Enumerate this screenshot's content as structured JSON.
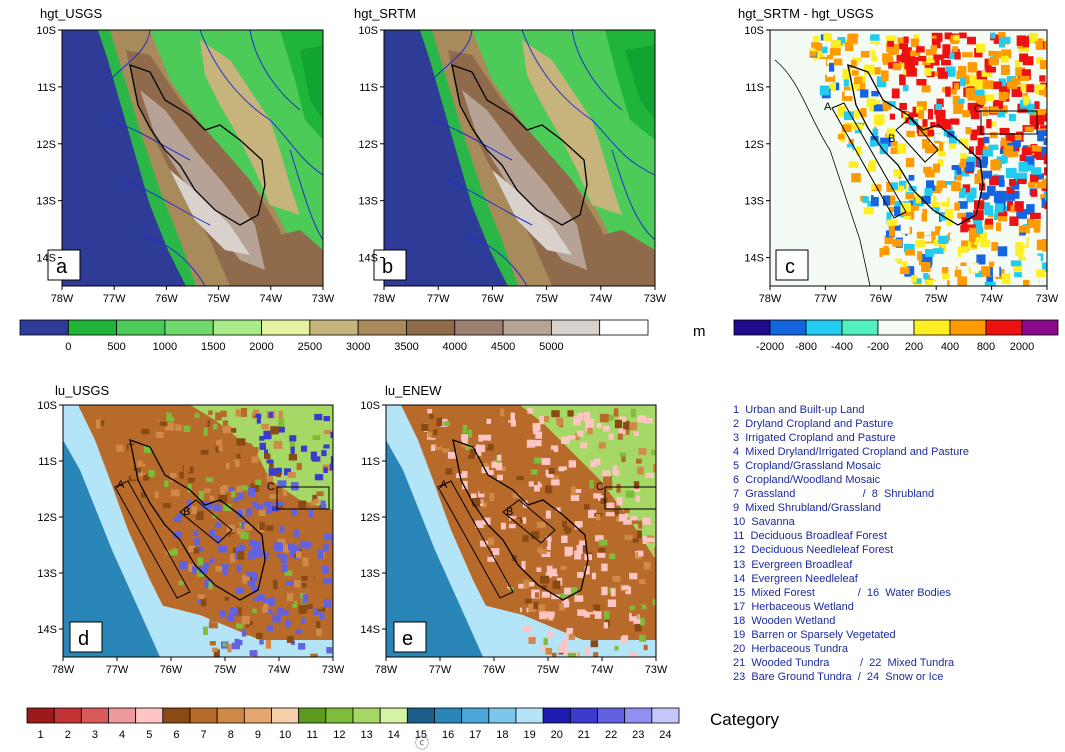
{
  "chart_data": [
    {
      "type": "heatmap",
      "panel_label": "a",
      "title": "hgt_USGS",
      "x_ticks": [
        "78W",
        "77W",
        "76W",
        "75W",
        "74W",
        "73W"
      ],
      "y_ticks": [
        "10S",
        "11S",
        "12S",
        "13S",
        "14S"
      ],
      "xlim": [
        -78,
        -73
      ],
      "ylim": [
        -14.5,
        -10
      ],
      "variable": "terrain height",
      "unit": "m"
    },
    {
      "type": "heatmap",
      "panel_label": "b",
      "title": "hgt_SRTM",
      "x_ticks": [
        "78W",
        "77W",
        "76W",
        "75W",
        "74W",
        "73W"
      ],
      "y_ticks": [
        "10S",
        "11S",
        "12S",
        "13S",
        "14S"
      ],
      "xlim": [
        -78,
        -73
      ],
      "ylim": [
        -14.5,
        -10
      ],
      "variable": "terrain height",
      "unit": "m"
    },
    {
      "type": "heatmap",
      "panel_label": "c",
      "title": "hgt_SRTM - hgt_USGS",
      "x_ticks": [
        "78W",
        "77W",
        "76W",
        "75W",
        "74W",
        "73W"
      ],
      "y_ticks": [
        "10S",
        "11S",
        "12S",
        "13S",
        "14S"
      ],
      "xlim": [
        -78,
        -73
      ],
      "ylim": [
        -14.5,
        -10
      ],
      "boxes": [
        "A",
        "B",
        "C"
      ]
    },
    {
      "type": "heatmap",
      "panel_label": "d",
      "title": "lu_USGS",
      "x_ticks": [
        "78W",
        "77W",
        "76W",
        "75W",
        "74W",
        "73W"
      ],
      "y_ticks": [
        "10S",
        "11S",
        "12S",
        "13S",
        "14S"
      ],
      "xlim": [
        -78,
        -73
      ],
      "ylim": [
        -14.5,
        -10
      ],
      "boxes": [
        "A",
        "B",
        "C"
      ]
    },
    {
      "type": "heatmap",
      "panel_label": "e",
      "title": "lu_ENEW",
      "x_ticks": [
        "78W",
        "77W",
        "76W",
        "75W",
        "74W",
        "73W"
      ],
      "y_ticks": [
        "10S",
        "11S",
        "12S",
        "13S",
        "14S"
      ],
      "xlim": [
        -78,
        -73
      ],
      "ylim": [
        -14.5,
        -10
      ],
      "boxes": [
        "A",
        "B",
        "C"
      ]
    }
  ],
  "height_colorbar": {
    "unit_label": "m",
    "labels": [
      "0",
      "500",
      "1000",
      "1500",
      "2000",
      "2500",
      "3000",
      "3500",
      "4000",
      "4500",
      "5000"
    ],
    "colors": [
      "#2e3c98",
      "#1fb53a",
      "#4ccb5a",
      "#6fd96e",
      "#a9eb8a",
      "#e4f2a2",
      "#c7b37c",
      "#a98a5a",
      "#8f6b4c",
      "#9c7f6e",
      "#b6a396",
      "#d9d1cb",
      "#ffffff"
    ]
  },
  "difference_colorbar": {
    "labels": [
      "-2000",
      "-800",
      "-400",
      "-200",
      "200",
      "400",
      "800",
      "2000"
    ],
    "colors": [
      "#220a8c",
      "#1565e0",
      "#22ccf0",
      "#52f0c0",
      "#f4fbf4",
      "#ffee22",
      "#ff9a00",
      "#ee1111",
      "#8b0a8b"
    ]
  },
  "category_colorbar": {
    "title": "Category",
    "labels": [
      "1",
      "2",
      "3",
      "4",
      "5",
      "6",
      "7",
      "8",
      "9",
      "10",
      "11",
      "12",
      "13",
      "14",
      "15",
      "16",
      "17",
      "18",
      "19",
      "20",
      "21",
      "22",
      "23",
      "24"
    ],
    "colors": [
      "#9c1a1a",
      "#c23434",
      "#d85a5a",
      "#ee9a9a",
      "#ffc4c4",
      "#8a4a14",
      "#b86a2a",
      "#d08a48",
      "#e4a76e",
      "#f6d0a8",
      "#5d9a1e",
      "#7fbc3a",
      "#a6d866",
      "#d6f2a4",
      "#1c5f8a",
      "#2a86b6",
      "#4aa6d6",
      "#7cc6ec",
      "#b4e4f8",
      "#1c1cb0",
      "#3a3acc",
      "#6262e0",
      "#9090f0",
      "#c6c6fa"
    ]
  },
  "landuse_legend": [
    "1  Urban and Built-up Land",
    "2  Dryland Cropland and Pasture",
    "3  Irrigated Cropland and Pasture",
    "4  Mixed Dryland/Irrigated Cropland and Pasture",
    "5  Cropland/Grassland Mosaic",
    "6  Cropland/Woodland Mosaic",
    "7  Grassland                      /  8  Shrubland",
    "9  Mixed Shrubland/Grassland",
    "10  Savanna",
    "11  Deciduous Broadleaf Forest",
    "12  Deciduous Needleleaf Forest",
    "13  Evergreen Broadleaf",
    "14  Evergreen Needleleaf",
    "15  Mixed Forest              /  16  Water Bodies",
    "17  Herbaceous Wetland",
    "18  Wooden Wetland",
    "19  Barren or Sparsely Vegetated",
    "20  Herbaceous Tundra",
    "21  Wooded Tundra          /  22  Mixed Tundra",
    "23  Bare Ground Tundra  /  24  Snow or Ice"
  ],
  "footer_mark": "ⓒ"
}
